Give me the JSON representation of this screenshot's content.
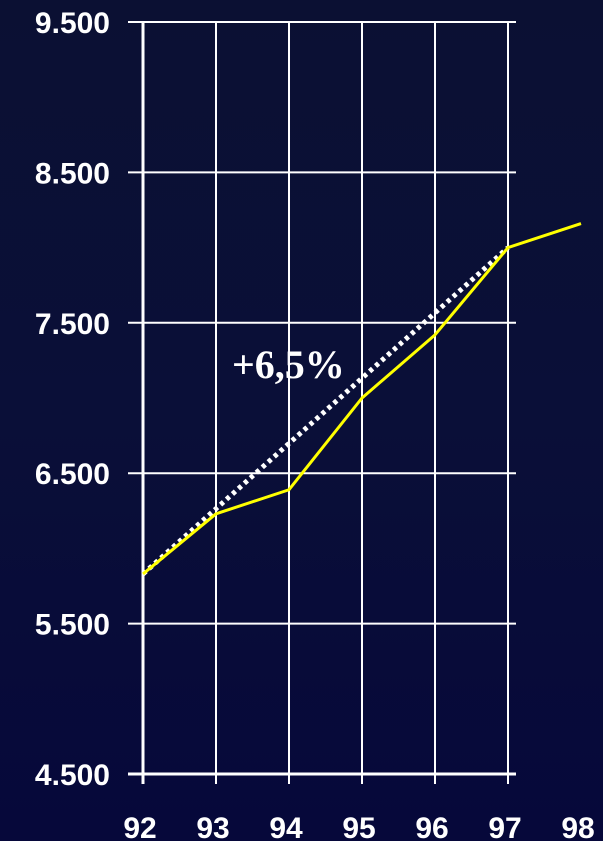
{
  "chart_data": {
    "type": "line",
    "title": "",
    "xlabel": "",
    "ylabel": "",
    "categories": [
      "92",
      "93",
      "94",
      "95",
      "96",
      "97",
      "98"
    ],
    "y_tick_labels": [
      "9.500",
      "8.500",
      "7.500",
      "6.500",
      "5.500",
      "4.500"
    ],
    "y_ticks": [
      9500,
      8500,
      7500,
      6500,
      5500,
      4500
    ],
    "ylim": [
      4500,
      9500
    ],
    "grid": true,
    "series": [
      {
        "values": [
          5830,
          6230,
          6390,
          7000,
          7420,
          8000,
          8160
        ],
        "color": "#ffff00",
        "style": "solid"
      },
      {
        "values": [
          5830,
          null,
          null,
          null,
          null,
          8000,
          null
        ],
        "color": "#ffffff",
        "style": "dotted"
      }
    ],
    "annotations": [
      {
        "text": "+6,5%",
        "x": "95",
        "y": 7200
      }
    ]
  },
  "colors": {
    "axis": "#ffffff",
    "grid": "#ffffff",
    "actual_line": "#ffff00",
    "trend_line": "#ffffff"
  }
}
